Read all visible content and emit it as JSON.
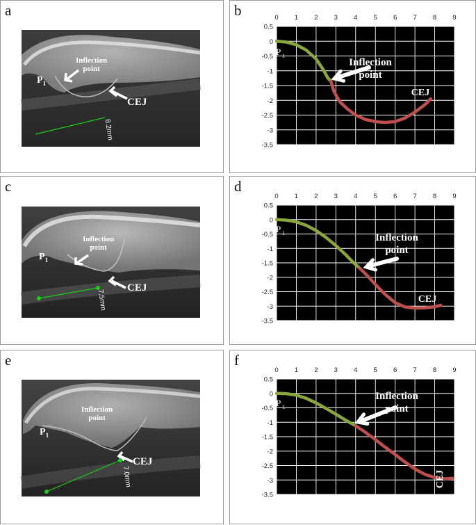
{
  "panels": [
    {
      "label": "a",
      "kind": "ct",
      "texts": {
        "p": "P",
        "p_sub": "1",
        "inflection_line1": "Inflection",
        "inflection_line2": "point",
        "cej": "CEJ",
        "measure": "8.2mm"
      }
    },
    {
      "label": "b",
      "kind": "chart"
    },
    {
      "label": "c",
      "kind": "ct",
      "texts": {
        "p": "P",
        "p_sub": "1",
        "inflection_line1": "Inflection",
        "inflection_line2": "point",
        "cej": "CEJ",
        "measure": "7.5mm"
      }
    },
    {
      "label": "d",
      "kind": "chart"
    },
    {
      "label": "e",
      "kind": "ct",
      "texts": {
        "p": "P",
        "p_sub": "1",
        "inflection_line1": "Inflection",
        "inflection_line2": "point",
        "cej": "CEJ",
        "measure": "7.0mm"
      }
    },
    {
      "label": "f",
      "kind": "chart"
    }
  ],
  "colors": {
    "green_curve": "#8aa73a",
    "red_curve": "#c0504d",
    "measure_line": "#19d019",
    "chart_bg": "#000000",
    "grid": "#ffffff"
  },
  "chart_data": [
    {
      "type": "line",
      "panel": "b",
      "x_ticks": [
        "0",
        "1",
        "2",
        "3",
        "4",
        "5",
        "6",
        "7",
        "8",
        "9"
      ],
      "y_ticks": [
        "0.5",
        "0",
        "-0.5",
        "-1",
        "-1.5",
        "-2",
        "-2.5",
        "-3",
        "-3.5"
      ],
      "xlim": [
        0,
        9
      ],
      "ylim": [
        -3.5,
        0.5
      ],
      "grid": true,
      "annotations": {
        "p": "P",
        "p_sub": "1",
        "inflection_line1": "Inflection",
        "inflection_line2": "point",
        "cej": "CEJ"
      },
      "series": [
        {
          "color": "#8aa73a",
          "x": [
            0,
            0.5,
            1,
            1.5,
            2,
            2.35,
            2.6,
            2.75
          ],
          "y": [
            0,
            -0.03,
            -0.12,
            -0.3,
            -0.6,
            -0.95,
            -1.25,
            -1.35
          ]
        },
        {
          "color": "#c0504d",
          "x": [
            2.75,
            2.9,
            3.2,
            3.6,
            4,
            4.5,
            5,
            5.5,
            6,
            6.5,
            7,
            7.5,
            7.8
          ],
          "y": [
            -1.35,
            -1.7,
            -2.05,
            -2.3,
            -2.5,
            -2.65,
            -2.72,
            -2.75,
            -2.72,
            -2.6,
            -2.4,
            -2.15,
            -1.95
          ]
        }
      ]
    },
    {
      "type": "line",
      "panel": "d",
      "x_ticks": [
        "0",
        "1",
        "2",
        "3",
        "4",
        "5",
        "6",
        "7",
        "8",
        "9"
      ],
      "y_ticks": [
        "0.5",
        "0",
        "-0.5",
        "-1",
        "-1.5",
        "-2",
        "-2.5",
        "-3",
        "-3.5"
      ],
      "xlim": [
        0,
        9
      ],
      "ylim": [
        -3.5,
        0.5
      ],
      "grid": true,
      "annotations": {
        "p": "P",
        "p_sub": "1",
        "inflection_line1": "Inflection",
        "inflection_line2": "point",
        "cej": "CEJ"
      },
      "series": [
        {
          "color": "#8aa73a",
          "x": [
            0,
            0.5,
            1,
            1.5,
            2,
            2.5,
            3,
            3.5,
            3.9,
            4.2
          ],
          "y": [
            0,
            -0.02,
            -0.08,
            -0.2,
            -0.38,
            -0.62,
            -0.9,
            -1.22,
            -1.5,
            -1.68
          ]
        },
        {
          "color": "#c0504d",
          "x": [
            4.2,
            4.6,
            5,
            5.5,
            6,
            6.5,
            7,
            7.5,
            8,
            8.3
          ],
          "y": [
            -1.68,
            -1.95,
            -2.25,
            -2.6,
            -2.88,
            -3.03,
            -3.07,
            -3.06,
            -3.02,
            -2.97
          ]
        }
      ]
    },
    {
      "type": "line",
      "panel": "f",
      "x_ticks": [
        "0",
        "1",
        "2",
        "3",
        "4",
        "5",
        "6",
        "7",
        "8",
        "9"
      ],
      "y_ticks": [
        "0.5",
        "0",
        "-0.5",
        "-1",
        "-1.5",
        "-2",
        "-2.5",
        "-3",
        "-3.5"
      ],
      "xlim": [
        0,
        9
      ],
      "ylim": [
        -3.5,
        0.5
      ],
      "grid": true,
      "annotations": {
        "p": "P",
        "p_sub": "1",
        "inflection_line1": "Inflection",
        "inflection_line2": "point",
        "cej": "CEJ"
      },
      "series": [
        {
          "color": "#8aa73a",
          "x": [
            0,
            0.5,
            1,
            1.5,
            2,
            2.5,
            3,
            3.5,
            4
          ],
          "y": [
            0,
            -0.01,
            -0.06,
            -0.17,
            -0.33,
            -0.52,
            -0.72,
            -0.93,
            -1.12
          ]
        },
        {
          "color": "#c0504d",
          "x": [
            4,
            4.5,
            5,
            5.5,
            6,
            6.5,
            7,
            7.5,
            8,
            8.5,
            8.9
          ],
          "y": [
            -1.12,
            -1.35,
            -1.6,
            -1.87,
            -2.12,
            -2.38,
            -2.62,
            -2.8,
            -2.92,
            -2.96,
            -2.94
          ]
        }
      ]
    }
  ]
}
